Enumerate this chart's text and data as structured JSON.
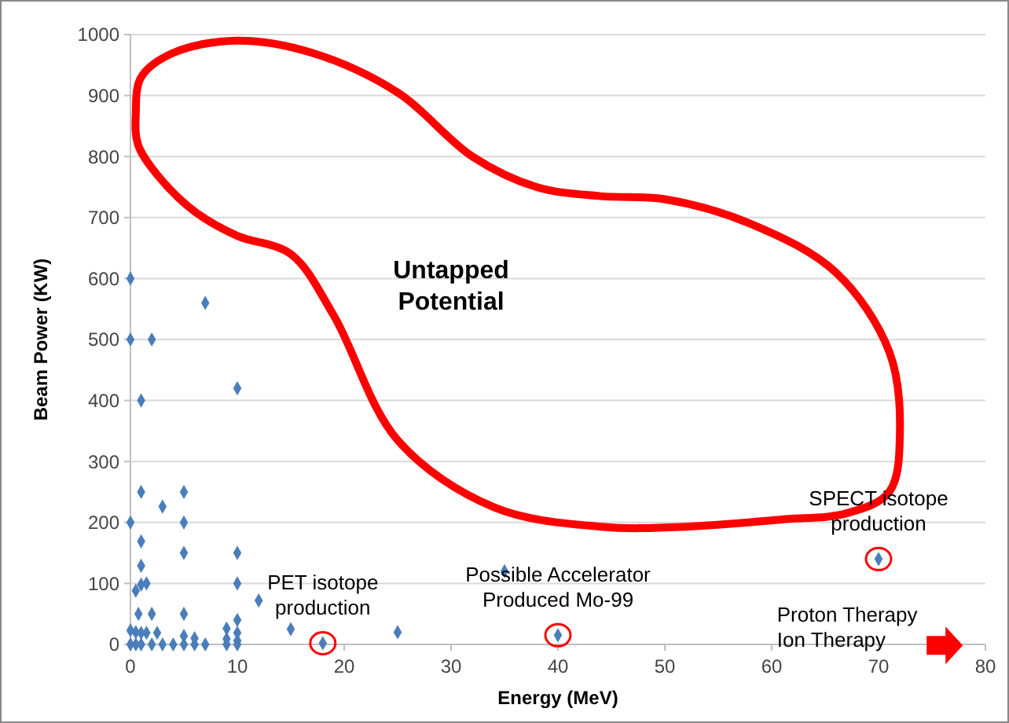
{
  "chart_data": {
    "type": "scatter",
    "xlabel": "Energy (MeV)",
    "ylabel": "Beam Power (KW)",
    "xlim": [
      0,
      80
    ],
    "ylim": [
      0,
      1000
    ],
    "xticks": [
      0,
      10,
      20,
      30,
      40,
      50,
      60,
      70,
      80
    ],
    "yticks": [
      0,
      100,
      200,
      300,
      400,
      500,
      600,
      700,
      800,
      900,
      1000
    ],
    "grid": "y",
    "marker": "diamond",
    "series": [
      {
        "color": "#4a7ebb",
        "x": [
          0,
          0,
          2,
          7,
          1,
          10,
          1,
          5,
          3,
          0,
          5,
          1,
          5,
          10,
          1,
          0.5,
          1,
          1.5,
          10,
          12,
          0.75,
          2,
          5,
          0,
          0.5,
          1,
          1.5,
          2.5,
          10,
          9,
          15,
          10,
          5,
          6,
          9,
          10,
          18,
          35,
          25,
          40,
          70,
          0,
          0.5,
          1,
          2,
          3,
          4,
          5,
          6,
          7,
          9,
          10
        ],
        "values": [
          600,
          500,
          500,
          560,
          400,
          420,
          250,
          250,
          226,
          200,
          200,
          169,
          150,
          150,
          129,
          88,
          98,
          100,
          100,
          72,
          50,
          50,
          50,
          23,
          20,
          19,
          19,
          19,
          40,
          26,
          25,
          19,
          14,
          10,
          9,
          6,
          2,
          120,
          20,
          15,
          140,
          0,
          0,
          0,
          0,
          0,
          0,
          0,
          0,
          0,
          0,
          0
        ]
      }
    ],
    "annotations": [
      "Untapped\nPotential",
      {
        "text": "PET isotope\nproduction",
        "x": 18,
        "y": 2
      },
      {
        "text": "Possible Accelerator\nProduced Mo-99",
        "x": 40,
        "y": 15
      },
      {
        "text": "SPECT isotope\nproduction",
        "x": 70,
        "y": 140
      },
      "Proton Therapy\nIon Therapy"
    ]
  }
}
